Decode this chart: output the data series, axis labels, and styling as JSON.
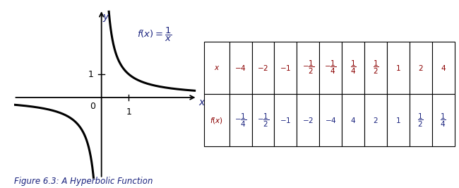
{
  "fig_width": 6.5,
  "fig_height": 2.66,
  "dpi": 100,
  "background_color": "#ffffff",
  "curve_color": "#000000",
  "curve_linewidth": 2.2,
  "label_color_x": "#1a237e",
  "label_color_y": "#1a237e",
  "formula_color": "#1a237e",
  "table_header_color": "#8b0000",
  "table_value_color": "#1a237e",
  "figure_caption": "Figure 6.3: A Hyperbolic Function",
  "caption_color": "#1a237e",
  "caption_fontsize": 8.5
}
